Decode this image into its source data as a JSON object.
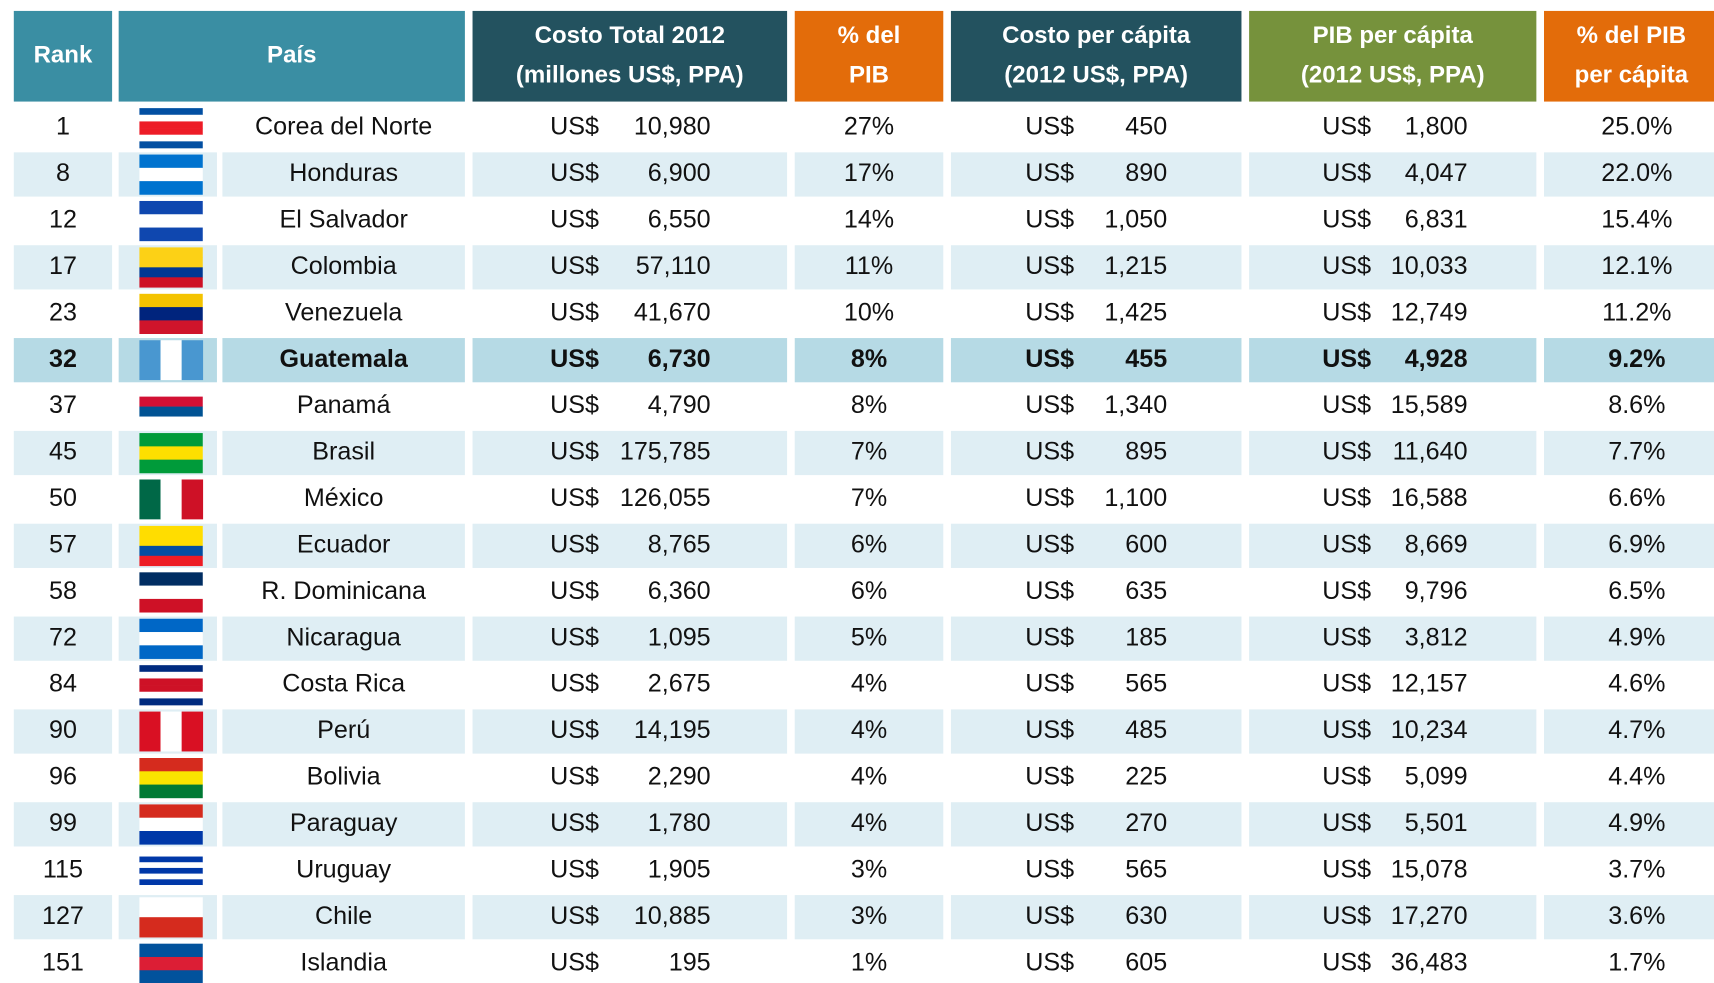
{
  "header": {
    "columns": [
      {
        "lines": [
          "Rank"
        ]
      },
      {
        "lines": [
          "País"
        ]
      },
      {
        "lines": [
          "Costo Total 2012",
          "(millones US$, PPA)"
        ]
      },
      {
        "lines": [
          "% del",
          "PIB"
        ]
      },
      {
        "lines": [
          "Costo per cápita",
          "(2012 US$, PPA)"
        ]
      },
      {
        "lines": [
          "PIB per cápita",
          "(2012 US$, PPA)"
        ]
      },
      {
        "lines": [
          "% del PIB",
          "per cápita"
        ]
      }
    ]
  },
  "table": {
    "highlighted_row": 5,
    "rows": [
      [
        "1",
        "Corea del Norte",
        "US$",
        "10,980",
        "27%",
        "US$",
        "450",
        "US$",
        "1,800",
        "25.0%"
      ],
      [
        "8",
        "Honduras",
        "US$",
        "6,900",
        "17%",
        "US$",
        "890",
        "US$",
        "4,047",
        "22.0%"
      ],
      [
        "12",
        "El Salvador",
        "US$",
        "6,550",
        "14%",
        "US$",
        "1,050",
        "US$",
        "6,831",
        "15.4%"
      ],
      [
        "17",
        "Colombia",
        "US$",
        "57,110",
        "11%",
        "US$",
        "1,215",
        "US$",
        "10,033",
        "12.1%"
      ],
      [
        "23",
        "Venezuela",
        "US$",
        "41,670",
        "10%",
        "US$",
        "1,425",
        "US$",
        "12,749",
        "11.2%"
      ],
      [
        "32",
        "Guatemala",
        "US$",
        "6,730",
        "8%",
        "US$",
        "455",
        "US$",
        "4,928",
        "9.2%"
      ],
      [
        "37",
        "Panamá",
        "US$",
        "4,790",
        "8%",
        "US$",
        "1,340",
        "US$",
        "15,589",
        "8.6%"
      ],
      [
        "45",
        "Brasil",
        "US$",
        "175,785",
        "7%",
        "US$",
        "895",
        "US$",
        "11,640",
        "7.7%"
      ],
      [
        "50",
        "México",
        "US$",
        "126,055",
        "7%",
        "US$",
        "1,100",
        "US$",
        "16,588",
        "6.6%"
      ],
      [
        "57",
        "Ecuador",
        "US$",
        "8,765",
        "6%",
        "US$",
        "600",
        "US$",
        "8,669",
        "6.9%"
      ],
      [
        "58",
        "R. Dominicana",
        "US$",
        "6,360",
        "6%",
        "US$",
        "635",
        "US$",
        "9,796",
        "6.5%"
      ],
      [
        "72",
        "Nicaragua",
        "US$",
        "1,095",
        "5%",
        "US$",
        "185",
        "US$",
        "3,812",
        "4.9%"
      ],
      [
        "84",
        "Costa Rica",
        "US$",
        "2,675",
        "4%",
        "US$",
        "565",
        "US$",
        "12,157",
        "4.6%"
      ],
      [
        "90",
        "Perú",
        "US$",
        "14,195",
        "4%",
        "US$",
        "485",
        "US$",
        "10,234",
        "4.7%"
      ],
      [
        "96",
        "Bolivia",
        "US$",
        "2,290",
        "4%",
        "US$",
        "225",
        "US$",
        "5,099",
        "4.4%"
      ],
      [
        "99",
        "Paraguay",
        "US$",
        "1,780",
        "4%",
        "US$",
        "270",
        "US$",
        "5,501",
        "4.9%"
      ],
      [
        "115",
        "Uruguay",
        "US$",
        "1,905",
        "3%",
        "US$",
        "565",
        "US$",
        "15,078",
        "3.7%"
      ],
      [
        "127",
        "Chile",
        "US$",
        "10,885",
        "3%",
        "US$",
        "630",
        "US$",
        "17,270",
        "3.6%"
      ],
      [
        "151",
        "Islandia",
        "US$",
        "195",
        "1%",
        "US$",
        "605",
        "US$",
        "36,483",
        "1.7%"
      ]
    ]
  }
}
